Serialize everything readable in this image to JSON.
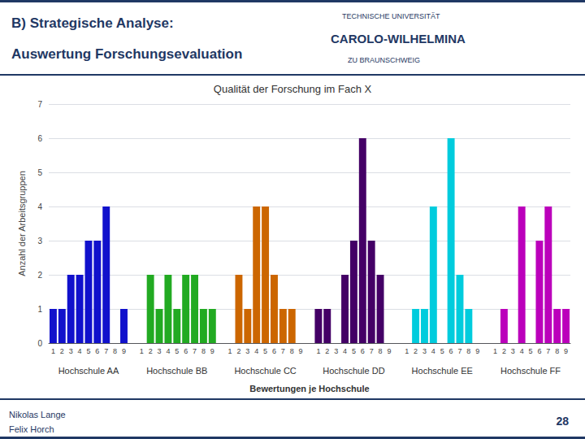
{
  "chart_data": {
    "type": "bar",
    "title": "Qualität der Forschung im Fach X",
    "xlabel": "Bewertungen je Hochschule",
    "ylabel": "Anzahl der Arbeitsgruppen",
    "categories": [
      "1",
      "2",
      "3",
      "4",
      "5",
      "6",
      "7",
      "8",
      "9"
    ],
    "series": [
      {
        "name": "Hochschule AA",
        "color": "#1111CC",
        "values": [
          1,
          1,
          2,
          2,
          3,
          3,
          4,
          0,
          1
        ]
      },
      {
        "name": "Hochschule BB",
        "color": "#22AA22",
        "values": [
          0,
          2,
          1,
          2,
          1,
          2,
          2,
          1,
          1
        ]
      },
      {
        "name": "Hochschule CC",
        "color": "#CC6600",
        "values": [
          0,
          2,
          1,
          4,
          4,
          2,
          1,
          1,
          0
        ]
      },
      {
        "name": "Hochschule DD",
        "color": "#440066",
        "values": [
          1,
          1,
          0,
          2,
          3,
          6,
          3,
          2,
          0
        ]
      },
      {
        "name": "Hochschule EE",
        "color": "#00CCDD",
        "values": [
          0,
          1,
          1,
          4,
          0,
          6,
          2,
          1,
          0
        ]
      },
      {
        "name": "Hochschule FF",
        "color": "#BB00BB",
        "values": [
          0,
          1,
          0,
          4,
          0,
          3,
          4,
          1,
          1
        ]
      }
    ],
    "ylim": [
      0,
      7
    ],
    "yticks": [
      0,
      1,
      2,
      3,
      4,
      5,
      6,
      7
    ],
    "grid": true,
    "annotations": [
      "B) Strategische Analyse:",
      "Auswertung Forschungsevaluation",
      "TECHNISCHE UNIVERSITÄT",
      "CAROLO-WILHELMINA",
      "ZU BRAUNSCHWEIG",
      "Nikolas Lange",
      "Felix Horch",
      "28"
    ]
  }
}
